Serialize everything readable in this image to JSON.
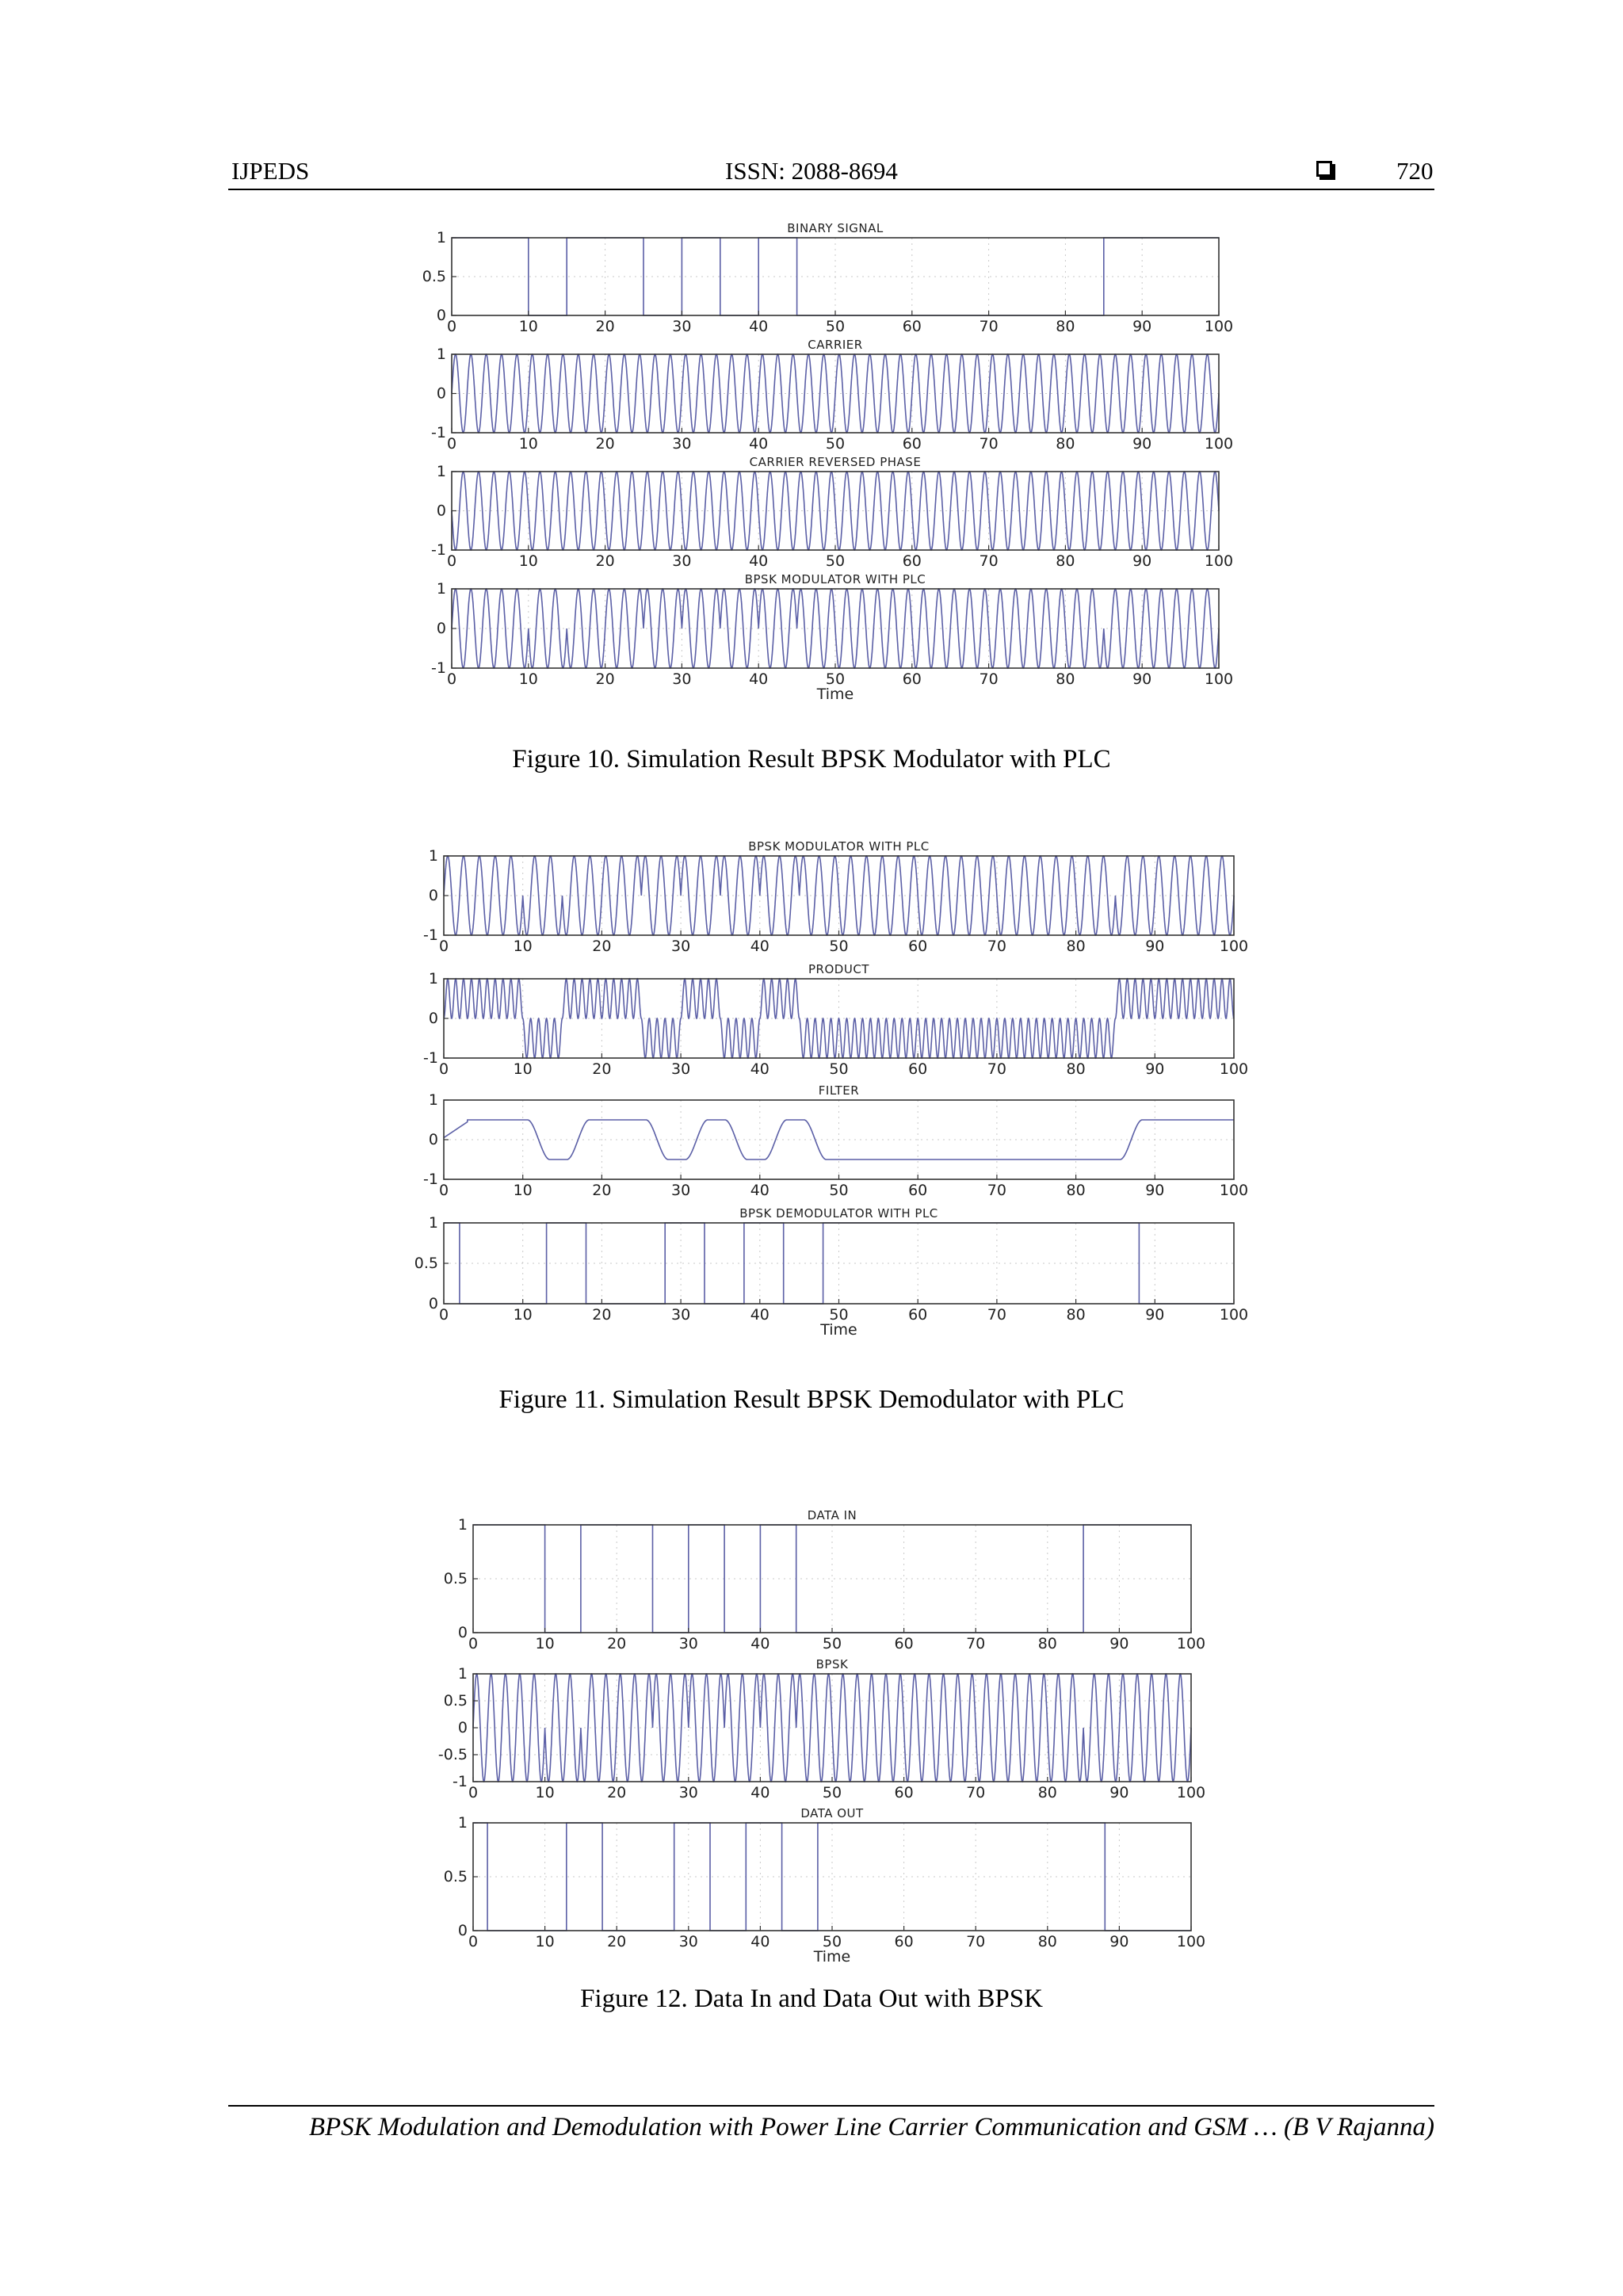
{
  "header": {
    "journal": "IJPEDS",
    "issn": "ISSN: 2088-8694",
    "page_number": "720"
  },
  "footer": {
    "text": "BPSK Modulation and Demodulation with Power Line Carrier Communication and GSM … (B V Rajanna)"
  },
  "figures": [
    {
      "caption": "Figure 10. Simulation Result BPSK Modulator with PLC"
    },
    {
      "caption": "Figure 11. Simulation Result BPSK Demodulator with PLC"
    },
    {
      "caption": "Figure 12. Data In and Data Out with BPSK"
    }
  ],
  "chart_data": [
    {
      "type": "line",
      "title": "BINARY SIGNAL",
      "xlim": [
        0,
        100
      ],
      "ylim": [
        0,
        1
      ],
      "xticks": [
        "0",
        "10",
        "20",
        "30",
        "40",
        "50",
        "60",
        "70",
        "80",
        "90",
        "100"
      ],
      "yticks": [
        "0",
        "0.5",
        "1"
      ],
      "series": [
        {
          "kind": "binary",
          "initial": 1,
          "transitions": [
            10,
            15,
            25,
            30,
            35,
            40,
            45,
            85
          ]
        }
      ]
    },
    {
      "type": "line",
      "title": "CARRIER",
      "xlim": [
        0,
        100
      ],
      "ylim": [
        -1,
        1
      ],
      "xticks": [
        "0",
        "10",
        "20",
        "30",
        "40",
        "50",
        "60",
        "70",
        "80",
        "90",
        "100"
      ],
      "yticks": [
        "-1",
        "0",
        "1"
      ],
      "series": [
        {
          "kind": "sine",
          "cycles": 50
        }
      ]
    },
    {
      "type": "line",
      "title": "CARRIER REVERSED PHASE",
      "xlim": [
        0,
        100
      ],
      "ylim": [
        -1,
        1
      ],
      "xticks": [
        "0",
        "10",
        "20",
        "30",
        "40",
        "50",
        "60",
        "70",
        "80",
        "90",
        "100"
      ],
      "yticks": [
        "-1",
        "0",
        "1"
      ],
      "series": [
        {
          "kind": "sine",
          "cycles": 50,
          "phase_reversed": true
        }
      ]
    },
    {
      "type": "line",
      "title": "BPSK MODULATOR WITH PLC",
      "xlabel": "Time",
      "xlim": [
        0,
        100
      ],
      "ylim": [
        -1,
        1
      ],
      "xticks": [
        "0",
        "10",
        "20",
        "30",
        "40",
        "50",
        "60",
        "70",
        "80",
        "90",
        "100"
      ],
      "yticks": [
        "-1",
        "0",
        "1"
      ],
      "series": [
        {
          "kind": "bpsk",
          "cycles": 50,
          "transitions": [
            10,
            15,
            25,
            30,
            35,
            40,
            45,
            85
          ]
        }
      ]
    },
    {
      "type": "line",
      "title": "BPSK MODULATOR WITH PLC",
      "xlim": [
        0,
        100
      ],
      "ylim": [
        -1,
        1
      ],
      "xticks": [
        "0",
        "10",
        "20",
        "30",
        "40",
        "50",
        "60",
        "70",
        "80",
        "90",
        "100"
      ],
      "yticks": [
        "-1",
        "0",
        "1"
      ],
      "series": [
        {
          "kind": "bpsk",
          "cycles": 50,
          "transitions": [
            10,
            15,
            25,
            30,
            35,
            40,
            45,
            85
          ]
        }
      ]
    },
    {
      "type": "line",
      "title": "PRODUCT",
      "xlim": [
        0,
        100
      ],
      "ylim": [
        -1,
        1
      ],
      "xticks": [
        "0",
        "10",
        "20",
        "30",
        "40",
        "50",
        "60",
        "70",
        "80",
        "90",
        "100"
      ],
      "yticks": [
        "-1",
        "0",
        "1"
      ],
      "series": [
        {
          "kind": "product",
          "cycles": 50,
          "initial": 1,
          "transitions": [
            10,
            15,
            25,
            30,
            35,
            40,
            45,
            85
          ]
        }
      ]
    },
    {
      "type": "line",
      "title": "FILTER",
      "xlim": [
        0,
        100
      ],
      "ylim": [
        -1,
        1
      ],
      "xticks": [
        "0",
        "10",
        "20",
        "30",
        "40",
        "50",
        "60",
        "70",
        "80",
        "90",
        "100"
      ],
      "yticks": [
        "-1",
        "0",
        "1"
      ],
      "series": [
        {
          "kind": "filter",
          "level": 0.5,
          "initial": 1,
          "transitions": [
            12,
            17,
            27,
            32,
            37,
            42,
            47,
            87
          ]
        }
      ]
    },
    {
      "type": "line",
      "title": "BPSK DEMODULATOR WITH PLC",
      "xlabel": "Time",
      "xlim": [
        0,
        100
      ],
      "ylim": [
        0,
        1
      ],
      "xticks": [
        "0",
        "10",
        "20",
        "30",
        "40",
        "50",
        "60",
        "70",
        "80",
        "90",
        "100"
      ],
      "yticks": [
        "0",
        "0.5",
        "1"
      ],
      "series": [
        {
          "kind": "binary",
          "initial": 1,
          "transitions": [
            2,
            13,
            18,
            28,
            33,
            38,
            43,
            48,
            88
          ]
        }
      ]
    },
    {
      "type": "line",
      "title": "DATA IN",
      "xlim": [
        0,
        100
      ],
      "ylim": [
        0,
        1
      ],
      "xticks": [
        "0",
        "10",
        "20",
        "30",
        "40",
        "50",
        "60",
        "70",
        "80",
        "90",
        "100"
      ],
      "yticks": [
        "0",
        "0.5",
        "1"
      ],
      "series": [
        {
          "kind": "binary",
          "initial": 1,
          "transitions": [
            10,
            15,
            25,
            30,
            35,
            40,
            45,
            85
          ]
        }
      ]
    },
    {
      "type": "line",
      "title": "BPSK",
      "xlim": [
        0,
        100
      ],
      "ylim": [
        -1,
        1
      ],
      "xticks": [
        "0",
        "10",
        "20",
        "30",
        "40",
        "50",
        "60",
        "70",
        "80",
        "90",
        "100"
      ],
      "yticks": [
        "-1",
        "-0.5",
        "0",
        "0.5",
        "1"
      ],
      "series": [
        {
          "kind": "bpsk",
          "cycles": 50,
          "transitions": [
            10,
            15,
            25,
            30,
            35,
            40,
            45,
            85
          ]
        }
      ]
    },
    {
      "type": "line",
      "title": "DATA OUT",
      "xlabel": "Time",
      "xlim": [
        0,
        100
      ],
      "ylim": [
        0,
        1
      ],
      "xticks": [
        "0",
        "10",
        "20",
        "30",
        "40",
        "50",
        "60",
        "70",
        "80",
        "90",
        "100"
      ],
      "yticks": [
        "0",
        "0.5",
        "1"
      ],
      "series": [
        {
          "kind": "binary",
          "initial": 1,
          "transitions": [
            2,
            13,
            18,
            28,
            33,
            38,
            43,
            48,
            88
          ]
        }
      ]
    }
  ]
}
